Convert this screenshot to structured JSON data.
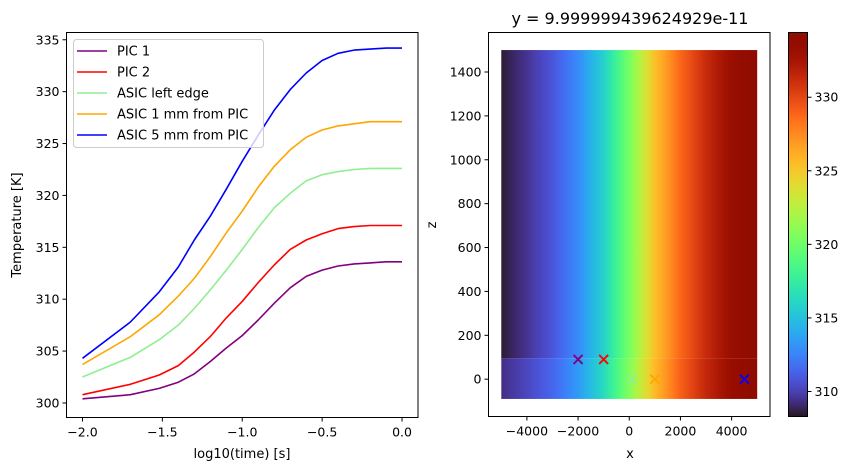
{
  "chart_data": [
    {
      "type": "line",
      "xlabel": "log10(time) [s]",
      "ylabel": "Temperature [K]",
      "xlim": [
        -2.1,
        0.1
      ],
      "ylim": [
        298.6,
        335.7
      ],
      "xticks": [
        -2.0,
        -1.5,
        -1.0,
        -0.5,
        0.0
      ],
      "xtick_labels": [
        "−2.0",
        "−1.5",
        "−1.0",
        "−0.5",
        "0.0"
      ],
      "yticks": [
        300,
        305,
        310,
        315,
        320,
        325,
        330,
        335
      ],
      "grid": false,
      "legend_placement": "upper-left",
      "x": [
        -2.0,
        -1.7,
        -1.52,
        -1.4,
        -1.3,
        -1.2,
        -1.1,
        -1.0,
        -0.9,
        -0.8,
        -0.7,
        -0.6,
        -0.5,
        -0.4,
        -0.3,
        -0.2,
        -0.1,
        0.0
      ],
      "series": [
        {
          "name": "PIC 1",
          "color": "#800080",
          "values": [
            300.4,
            300.8,
            301.4,
            302.0,
            302.8,
            304.0,
            305.3,
            306.5,
            308.0,
            309.6,
            311.1,
            312.2,
            312.8,
            313.2,
            313.4,
            313.5,
            313.6,
            313.6
          ]
        },
        {
          "name": "PIC 2",
          "color": "#ff0000",
          "values": [
            300.8,
            301.8,
            302.7,
            303.6,
            304.9,
            306.4,
            308.2,
            309.8,
            311.6,
            313.3,
            314.8,
            315.7,
            316.3,
            316.8,
            317.0,
            317.1,
            317.1,
            317.1
          ]
        },
        {
          "name": "ASIC left edge",
          "color": "#90ee90",
          "values": [
            302.5,
            304.4,
            306.1,
            307.5,
            309.1,
            310.9,
            312.8,
            314.8,
            316.9,
            318.8,
            320.2,
            321.4,
            322.0,
            322.3,
            322.5,
            322.6,
            322.6,
            322.6
          ]
        },
        {
          "name": "ASIC 1 mm from PIC",
          "color": "#ffa500",
          "values": [
            303.7,
            306.4,
            308.5,
            310.3,
            312.0,
            314.1,
            316.4,
            318.5,
            320.8,
            322.8,
            324.4,
            325.6,
            326.3,
            326.7,
            326.9,
            327.1,
            327.1,
            327.1
          ]
        },
        {
          "name": "ASIC 5 mm from PIC",
          "color": "#0000ff",
          "values": [
            304.3,
            307.8,
            310.7,
            313.1,
            315.7,
            318.0,
            320.6,
            323.3,
            325.8,
            328.2,
            330.2,
            331.8,
            333.0,
            333.7,
            334.0,
            334.1,
            334.2,
            334.2
          ]
        }
      ]
    },
    {
      "type": "heatmap",
      "title": "y = 9.999999439624929e-11",
      "xlabel": "x",
      "ylabel": "z",
      "xlim": [
        -5500,
        5500
      ],
      "ylim": [
        -170,
        1580
      ],
      "xticks": [
        -4000,
        -2000,
        0,
        2000,
        4000
      ],
      "xtick_labels": [
        "−4000",
        "−2000",
        "0",
        "2000",
        "4000"
      ],
      "yticks": [
        0,
        200,
        400,
        600,
        800,
        1000,
        1200,
        1400
      ],
      "extent": {
        "x": [
          -5000,
          5000
        ],
        "z": [
          -90,
          1500
        ]
      },
      "colormap": "turbo",
      "colorbar": {
        "range": [
          308.3,
          334.4
        ],
        "ticks": [
          310,
          315,
          320,
          325,
          330
        ]
      },
      "temperature_profile_x": [
        -5000,
        -4000,
        -3000,
        -2000,
        -1000,
        0,
        1000,
        2000,
        3000,
        4000,
        5000
      ],
      "temperature_profile_T": [
        308.5,
        309.5,
        310.8,
        312.8,
        315.8,
        320.3,
        325.3,
        328.8,
        331.2,
        333.2,
        334.2
      ],
      "lower_strip": {
        "z": [
          -90,
          95
        ],
        "temperature_offset": 0.8
      },
      "markers": [
        {
          "label": "PIC 1",
          "x": -2000,
          "z": 90,
          "color": "#800080"
        },
        {
          "label": "PIC 2",
          "x": -1000,
          "z": 90,
          "color": "#ff0000"
        },
        {
          "label": "ASIC left edge",
          "x": 100,
          "z": 0,
          "color": "#90ee90"
        },
        {
          "label": "ASIC 1 mm from PIC",
          "x": 1000,
          "z": 0,
          "color": "#ffa500"
        },
        {
          "label": "ASIC 5 mm from PIC",
          "x": 4500,
          "z": 0,
          "color": "#0000ff"
        }
      ]
    }
  ]
}
